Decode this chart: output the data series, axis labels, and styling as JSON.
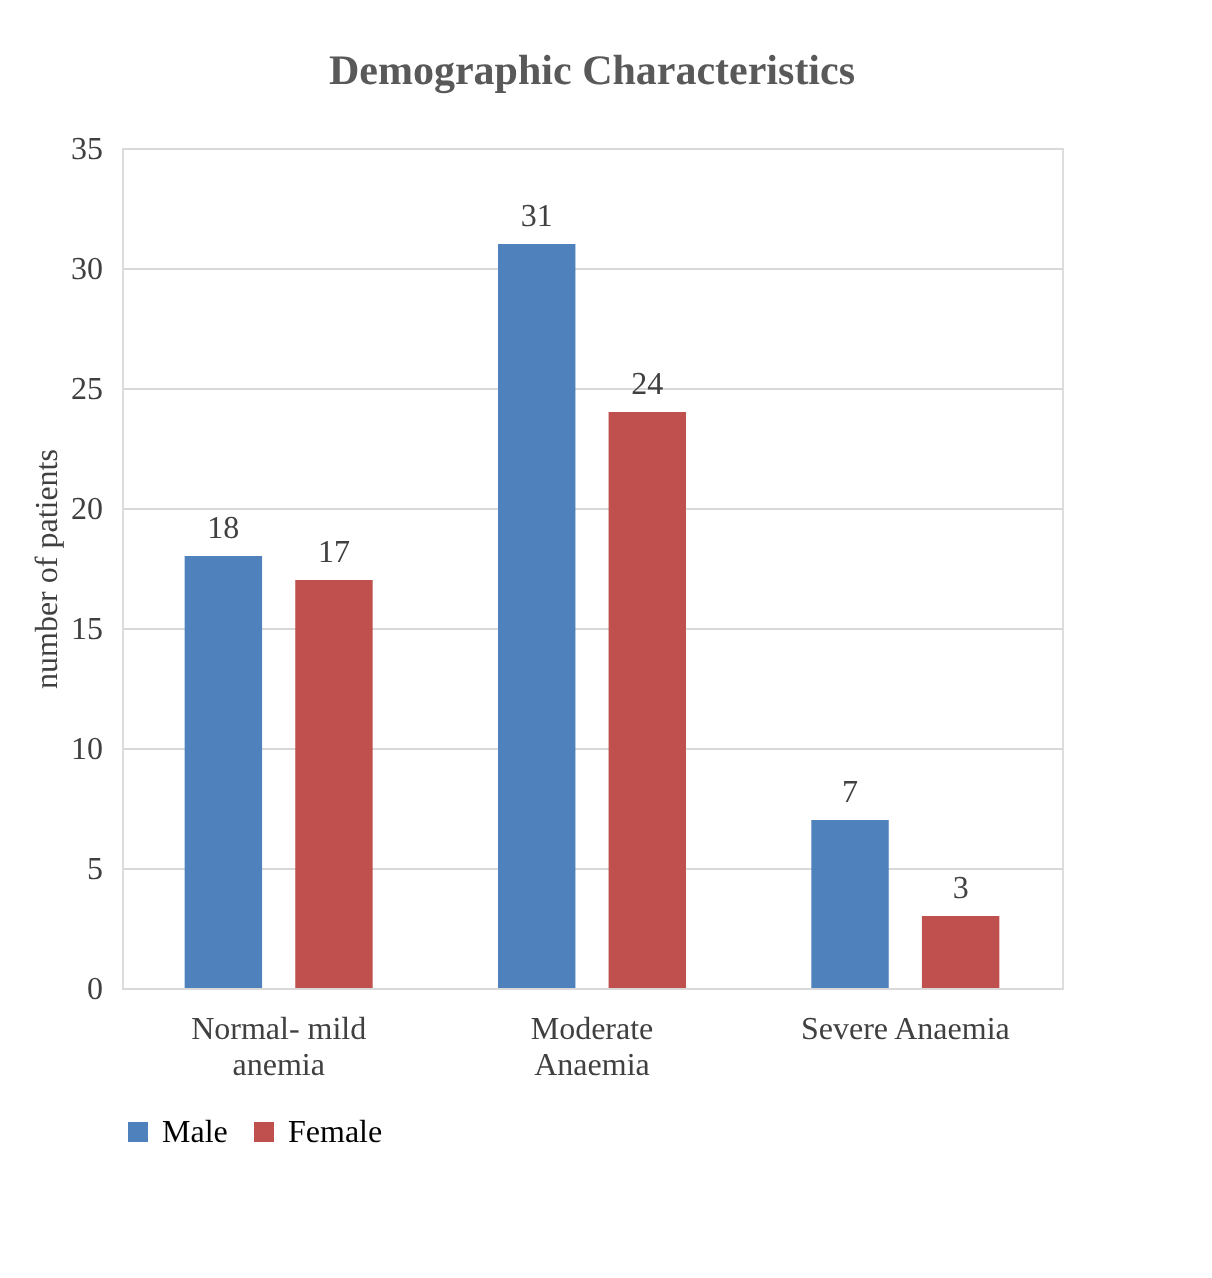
{
  "chart_data": {
    "type": "bar",
    "title": "Demographic Characteristics",
    "ylabel": "number of patients",
    "categories": [
      "Normal- mild anemia",
      "Moderate Anaemia",
      "Severe Anaemia"
    ],
    "series": [
      {
        "name": "Male",
        "color": "#4f81bd",
        "values": [
          18,
          31,
          7
        ]
      },
      {
        "name": "Female",
        "color": "#c0504d",
        "values": [
          17,
          24,
          3
        ]
      }
    ],
    "ylim": [
      0,
      35
    ],
    "yticks": [
      0,
      5,
      10,
      15,
      20,
      25,
      30,
      35
    ],
    "grid": "y",
    "legend": "bottom",
    "data_labels": true
  }
}
